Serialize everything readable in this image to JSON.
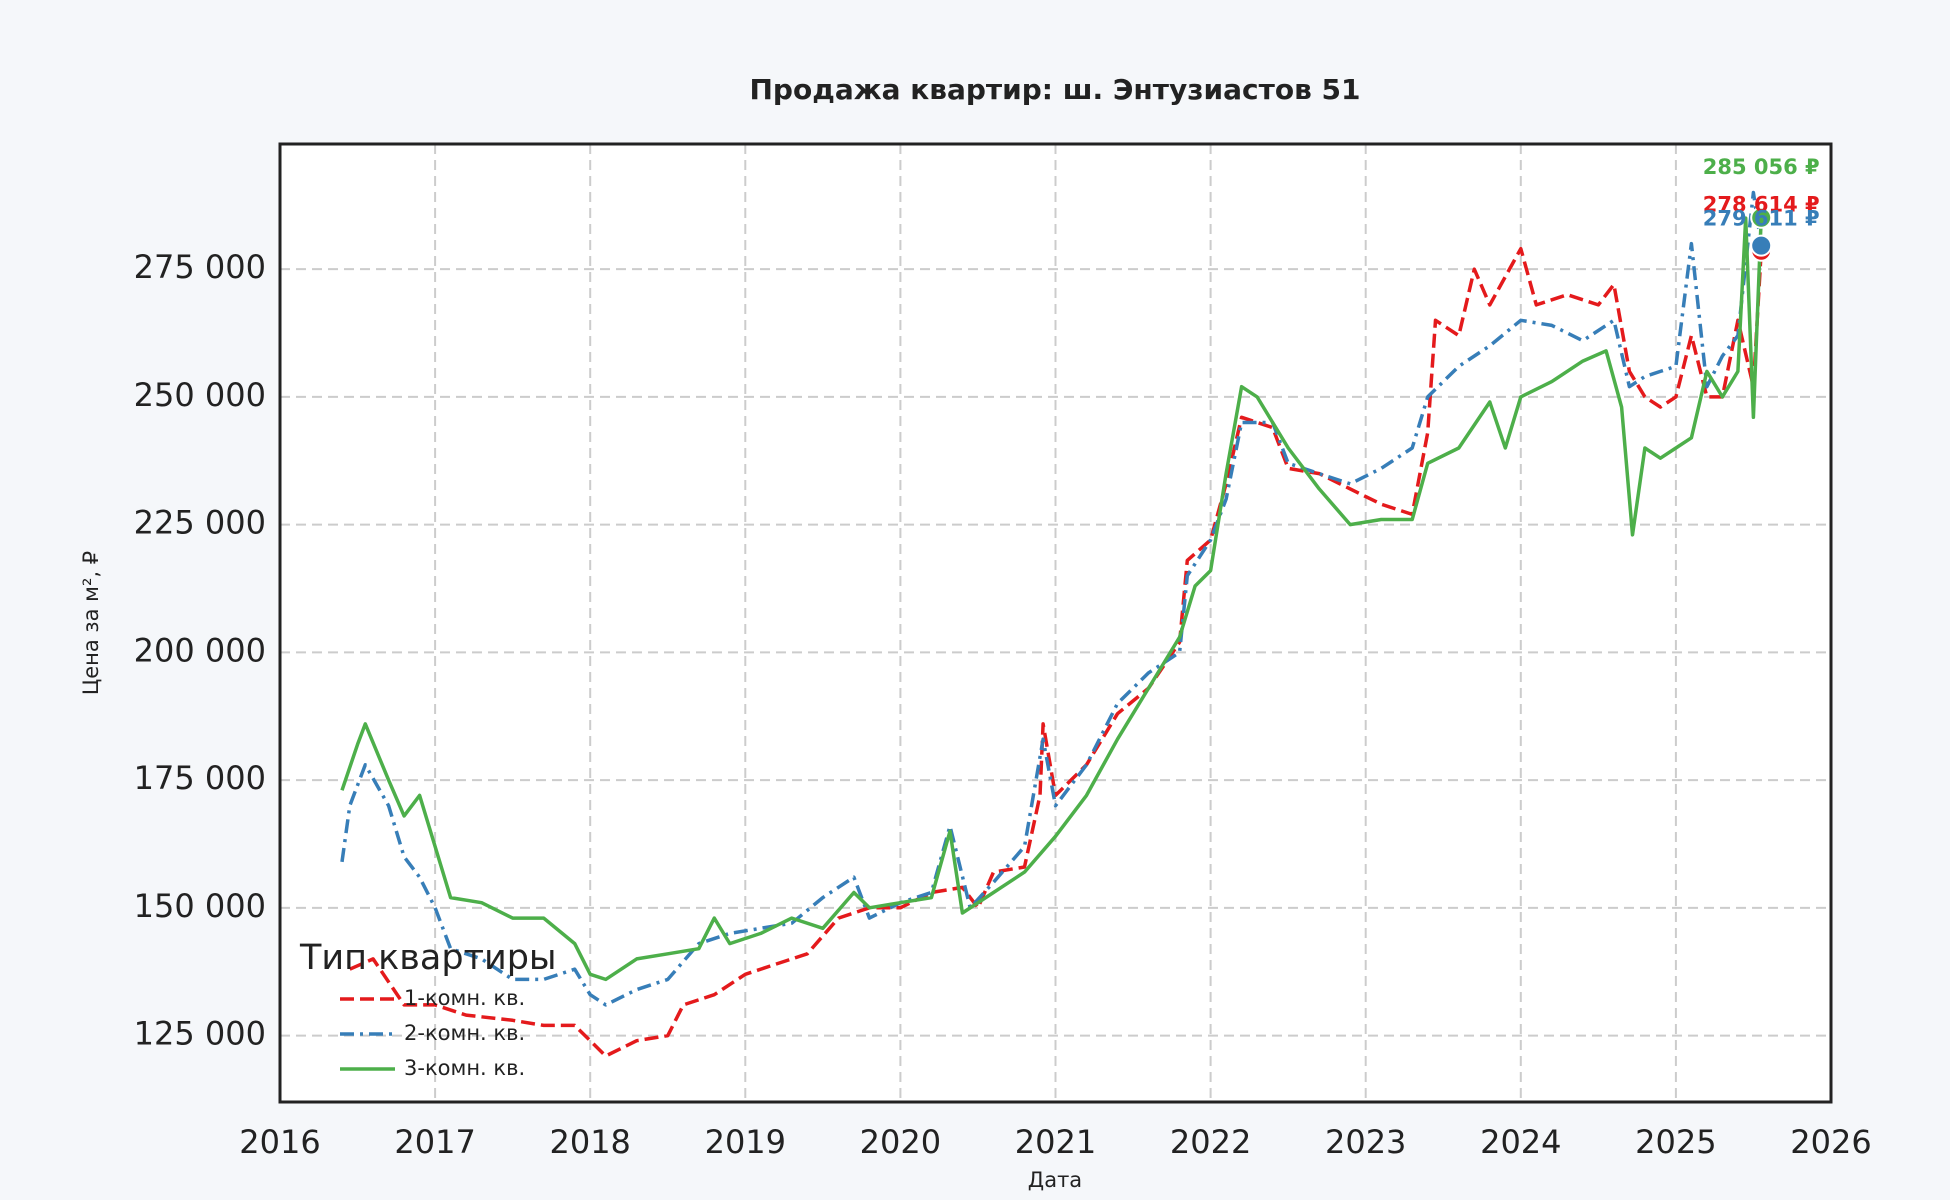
{
  "chart_data": {
    "type": "line",
    "title": "Продажа квартир: ш. Энтузиастов 51",
    "x_label": "Дата",
    "y_label": "Цена за м², ₽",
    "xlim": [
      2016,
      2026
    ],
    "xticks": [
      2016,
      2017,
      2018,
      2019,
      2020,
      2021,
      2022,
      2023,
      2024,
      2025,
      2026
    ],
    "ylim": [
      112000,
      299500
    ],
    "yticks": [
      {
        "value": 125000,
        "label": "125 000"
      },
      {
        "value": 150000,
        "label": "150 000"
      },
      {
        "value": 175000,
        "label": "175 000"
      },
      {
        "value": 200000,
        "label": "200 000"
      },
      {
        "value": 225000,
        "label": "225 000"
      },
      {
        "value": 250000,
        "label": "250 000"
      },
      {
        "value": 275000,
        "label": "275 000"
      }
    ],
    "grid": true,
    "legend_title": "Тип квартиры",
    "legend_loc": "lower left",
    "series": [
      {
        "name": "1-комн. кв.",
        "color": "#e41a1c",
        "linestyle": "dashed",
        "x": [
          2016.45,
          2016.6,
          2016.8,
          2017.0,
          2017.2,
          2017.5,
          2017.7,
          2017.9,
          2018.0,
          2018.1,
          2018.3,
          2018.5,
          2018.6,
          2018.8,
          2019.0,
          2019.2,
          2019.4,
          2019.6,
          2019.8,
          2020.0,
          2020.2,
          2020.4,
          2020.5,
          2020.6,
          2020.8,
          2020.9,
          2020.92,
          2021.0,
          2021.2,
          2021.4,
          2021.6,
          2021.8,
          2021.85,
          2022.0,
          2022.1,
          2022.2,
          2022.4,
          2022.5,
          2022.7,
          2022.9,
          2023.1,
          2023.3,
          2023.4,
          2023.45,
          2023.6,
          2023.7,
          2023.8,
          2024.0,
          2024.1,
          2024.3,
          2024.5,
          2024.6,
          2024.7,
          2024.8,
          2024.9,
          2025.0,
          2025.1,
          2025.2,
          2025.3,
          2025.4,
          2025.5,
          2025.55
        ],
        "values": [
          138000,
          140000,
          131000,
          131000,
          129000,
          128000,
          127000,
          127000,
          124000,
          121000,
          124000,
          125000,
          131000,
          133000,
          137000,
          139000,
          141000,
          148000,
          150000,
          150000,
          153000,
          154000,
          150000,
          157000,
          158000,
          172000,
          186000,
          172000,
          178000,
          188000,
          193000,
          202000,
          218000,
          222000,
          233000,
          246000,
          244000,
          236000,
          235000,
          232000,
          229000,
          227000,
          243000,
          265000,
          262000,
          275000,
          268000,
          279000,
          268000,
          270000,
          268000,
          272000,
          255000,
          250000,
          248000,
          250000,
          262000,
          250000,
          250000,
          265000,
          252000,
          278614
        ]
      },
      {
        "name": "2-комн. кв.",
        "color": "#377eb8",
        "linestyle": "dashdot",
        "x": [
          2016.4,
          2016.45,
          2016.55,
          2016.7,
          2016.8,
          2016.9,
          2017.0,
          2017.1,
          2017.3,
          2017.5,
          2017.7,
          2017.9,
          2018.0,
          2018.1,
          2018.3,
          2018.5,
          2018.7,
          2018.9,
          2019.1,
          2019.3,
          2019.5,
          2019.7,
          2019.8,
          2020.0,
          2020.2,
          2020.32,
          2020.45,
          2020.6,
          2020.8,
          2020.92,
          2021.0,
          2021.2,
          2021.4,
          2021.6,
          2021.8,
          2021.85,
          2022.0,
          2022.1,
          2022.2,
          2022.4,
          2022.5,
          2022.7,
          2022.9,
          2023.1,
          2023.3,
          2023.4,
          2023.6,
          2023.8,
          2024.0,
          2024.2,
          2024.4,
          2024.6,
          2024.7,
          2024.8,
          2024.9,
          2025.0,
          2025.1,
          2025.2,
          2025.3,
          2025.4,
          2025.5,
          2025.55
        ],
        "values": [
          159000,
          170000,
          178000,
          170000,
          160000,
          156000,
          150000,
          142000,
          140000,
          136000,
          136000,
          138000,
          133000,
          131000,
          134000,
          136000,
          143000,
          145000,
          146000,
          147000,
          152000,
          156000,
          148000,
          151000,
          153000,
          166000,
          150000,
          155000,
          162000,
          183000,
          170000,
          178000,
          190000,
          196000,
          200000,
          215000,
          222000,
          230000,
          245000,
          245000,
          237000,
          235000,
          233000,
          236000,
          240000,
          250000,
          256000,
          260000,
          265000,
          264000,
          261000,
          265000,
          252000,
          254000,
          255000,
          256000,
          280000,
          252000,
          258000,
          262000,
          290000,
          279611
        ]
      },
      {
        "name": "3-комн. кв.",
        "color": "#4daf4a",
        "linestyle": "solid",
        "x": [
          2016.4,
          2016.5,
          2016.55,
          2016.7,
          2016.8,
          2016.9,
          2017.0,
          2017.1,
          2017.3,
          2017.5,
          2017.7,
          2017.9,
          2018.0,
          2018.1,
          2018.3,
          2018.5,
          2018.7,
          2018.8,
          2018.9,
          2019.1,
          2019.3,
          2019.5,
          2019.7,
          2019.8,
          2020.0,
          2020.2,
          2020.32,
          2020.4,
          2020.6,
          2020.8,
          2021.0,
          2021.2,
          2021.4,
          2021.6,
          2021.8,
          2021.9,
          2022.0,
          2022.1,
          2022.2,
          2022.3,
          2022.5,
          2022.7,
          2022.9,
          2023.1,
          2023.3,
          2023.4,
          2023.6,
          2023.8,
          2023.9,
          2024.0,
          2024.2,
          2024.4,
          2024.55,
          2024.65,
          2024.72,
          2024.8,
          2024.9,
          2025.0,
          2025.1,
          2025.2,
          2025.3,
          2025.4,
          2025.45,
          2025.5,
          2025.55
        ],
        "values": [
          173000,
          182000,
          186000,
          175000,
          168000,
          172000,
          162000,
          152000,
          151000,
          148000,
          148000,
          143000,
          137000,
          136000,
          140000,
          141000,
          142000,
          148000,
          143000,
          145000,
          148000,
          146000,
          153000,
          150000,
          151000,
          152000,
          165000,
          149000,
          153000,
          157000,
          164000,
          172000,
          183000,
          193000,
          203000,
          213000,
          216000,
          235000,
          252000,
          250000,
          240000,
          232000,
          225000,
          226000,
          226000,
          237000,
          240000,
          249000,
          240000,
          250000,
          253000,
          257000,
          259000,
          248000,
          223000,
          240000,
          238000,
          240000,
          242000,
          255000,
          250000,
          255000,
          285000,
          246000,
          285056
        ]
      }
    ],
    "annotations": [
      {
        "x": 2025.55,
        "y": 285056,
        "label": "285 056 ₽",
        "color": "#4daf4a"
      },
      {
        "x": 2025.55,
        "y": 278614,
        "label": "278 614 ₽",
        "color": "#e41a1c"
      },
      {
        "x": 2025.55,
        "y": 279611,
        "label": "279 611 ₽",
        "color": "#377eb8"
      }
    ]
  }
}
